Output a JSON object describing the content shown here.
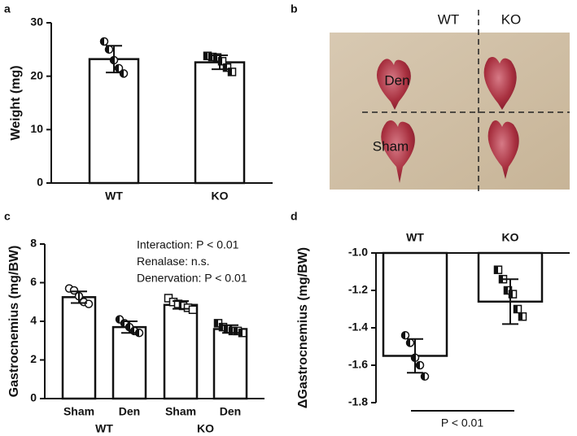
{
  "chart_data": [
    {
      "type": "bar",
      "panel_label": "a",
      "ylabel": "Weight (mg)",
      "categories": [
        "WT",
        "KO"
      ],
      "values": [
        23.2,
        22.6
      ],
      "errors": [
        2.5,
        1.3
      ],
      "points": [
        [
          26.5,
          25.0,
          23.0,
          21.5,
          20.5
        ],
        [
          23.8,
          23.6,
          23.5,
          22.8,
          21.6,
          20.8
        ]
      ],
      "markers": [
        "circle-half",
        "square-half"
      ],
      "ylim": [
        0,
        30
      ],
      "yticks": [
        0,
        10,
        20,
        30
      ],
      "color": "#ffffff"
    },
    {
      "type": "bar",
      "panel_label": "c",
      "ylabel": "Gastrocnemius (mg/BW)",
      "categories": [
        "Sham",
        "Den",
        "Sham",
        "Den"
      ],
      "groups": [
        "WT",
        "KO"
      ],
      "values": [
        5.25,
        3.7,
        4.85,
        3.6
      ],
      "errors": [
        0.3,
        0.3,
        0.2,
        0.2
      ],
      "points": [
        [
          5.7,
          5.6,
          5.3,
          5.0,
          4.9
        ],
        [
          4.1,
          3.9,
          3.7,
          3.5,
          3.4
        ],
        [
          5.2,
          5.0,
          4.9,
          4.8,
          4.7,
          4.6
        ],
        [
          3.9,
          3.7,
          3.6,
          3.5,
          3.5,
          3.4
        ]
      ],
      "markers": [
        "circle-open",
        "circle-half",
        "square-open",
        "square-half"
      ],
      "annotations": [
        "Interaction: P < 0.01",
        "Renalase: n.s.",
        "Denervation: P < 0.01"
      ],
      "ylim": [
        0,
        8
      ],
      "yticks": [
        0,
        2,
        4,
        6,
        8
      ],
      "color": "#ffffff"
    },
    {
      "type": "bar",
      "panel_label": "d",
      "ylabel": "ΔGastrocnemius (mg/BW)",
      "categories": [
        "WT",
        "KO"
      ],
      "values": [
        -1.55,
        -1.26
      ],
      "errors": [
        0.09,
        0.12
      ],
      "points": [
        [
          -1.44,
          -1.48,
          -1.56,
          -1.6,
          -1.66
        ],
        [
          -1.09,
          -1.14,
          -1.2,
          -1.22,
          -1.3,
          -1.34
        ]
      ],
      "markers": [
        "circle-half",
        "square-half"
      ],
      "annotations": [
        "P < 0.01"
      ],
      "ylim": [
        -1.8,
        -1.0
      ],
      "yticks": [
        -1.8,
        -1.6,
        -1.4,
        -1.2,
        {
          "value": -1.0,
          "label": "-1.0"
        }
      ],
      "color": "#ffffff"
    }
  ],
  "image_panel": {
    "panel_label": "b",
    "columns": [
      "WT",
      "KO"
    ],
    "rows": [
      "Den",
      "Sham"
    ]
  }
}
